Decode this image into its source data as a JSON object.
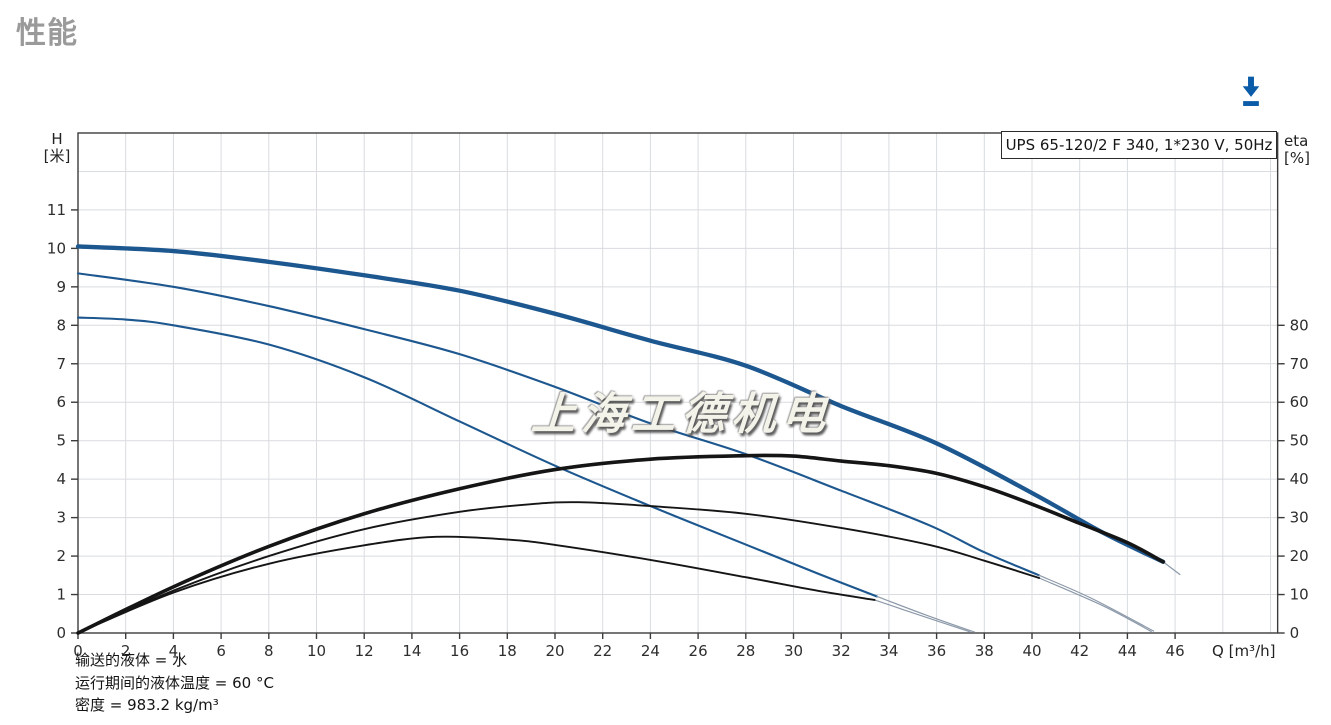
{
  "page": {
    "title": "性能"
  },
  "header": {
    "download": {
      "icon": "download-arrow",
      "color": "#0b5ca8"
    }
  },
  "chart_data": {
    "type": "line",
    "model_label": "UPS 65-120/2 F 340, 1*230 V, 50Hz",
    "watermark": "上海工德机电",
    "axes": {
      "left": {
        "name": "H",
        "unit": "[米]",
        "ticks": [
          0,
          1,
          2,
          3,
          4,
          5,
          6,
          7,
          8,
          9,
          10,
          11
        ],
        "range": [
          0,
          13
        ]
      },
      "right": {
        "name": "eta",
        "unit": "[%]",
        "ticks": [
          0,
          10,
          20,
          30,
          40,
          50,
          60,
          70,
          80
        ],
        "range": [
          0,
          130
        ]
      },
      "bottom": {
        "name": "Q",
        "unit": "[m³/h]",
        "ticks": [
          0,
          2,
          4,
          6,
          8,
          10,
          12,
          14,
          16,
          18,
          20,
          22,
          24,
          26,
          28,
          30,
          32,
          34,
          36,
          38,
          40,
          42,
          44,
          46
        ],
        "range": [
          0,
          50.3
        ]
      }
    },
    "grid": {
      "x_step": 2,
      "y_step": 1,
      "on": true
    },
    "colors": {
      "curve_blue": "#1d578f",
      "curve_black": "#151515",
      "tail_gray": "#8c99a9",
      "grid": "#d9dce0",
      "axis": "#3c3c3c",
      "text": "#2e2e2e"
    },
    "series": [
      {
        "name": "h-curve-speed-3",
        "axis": "H",
        "color": "blue",
        "weight": "thick",
        "points": [
          [
            0,
            10.05
          ],
          [
            4,
            9.93
          ],
          [
            8,
            9.65
          ],
          [
            12,
            9.3
          ],
          [
            16,
            8.9
          ],
          [
            20,
            8.3
          ],
          [
            24,
            7.6
          ],
          [
            28,
            6.95
          ],
          [
            32,
            5.9
          ],
          [
            36,
            4.93
          ],
          [
            40,
            3.64
          ],
          [
            43,
            2.6
          ],
          [
            45.5,
            1.85
          ]
        ]
      },
      {
        "name": "h-curve-speed-2",
        "axis": "H",
        "color": "blue",
        "weight": "thin",
        "points": [
          [
            0,
            9.35
          ],
          [
            4,
            9.0
          ],
          [
            8,
            8.5
          ],
          [
            12,
            7.9
          ],
          [
            16,
            7.25
          ],
          [
            20,
            6.4
          ],
          [
            24,
            5.45
          ],
          [
            28,
            4.65
          ],
          [
            32,
            3.7
          ],
          [
            35.7,
            2.8
          ],
          [
            38,
            2.1
          ],
          [
            40.3,
            1.5
          ]
        ]
      },
      {
        "name": "h-curve-speed-1",
        "axis": "H",
        "color": "blue",
        "weight": "thin",
        "points": [
          [
            0,
            8.2
          ],
          [
            2,
            8.15
          ],
          [
            4,
            8.0
          ],
          [
            8,
            7.5
          ],
          [
            12,
            6.65
          ],
          [
            16,
            5.5
          ],
          [
            20,
            4.35
          ],
          [
            24,
            3.3
          ],
          [
            28,
            2.3
          ],
          [
            31,
            1.55
          ],
          [
            33.5,
            0.95
          ]
        ]
      },
      {
        "name": "h-curve-speed-3-extension",
        "axis": "H",
        "color": "tail",
        "weight": "tail",
        "points": [
          [
            45.5,
            1.85
          ],
          [
            46.2,
            1.52
          ]
        ]
      },
      {
        "name": "h-curve-speed-2-extension",
        "axis": "H",
        "color": "tail",
        "weight": "tail",
        "points": [
          [
            40.3,
            1.5
          ],
          [
            42.5,
            0.9
          ],
          [
            45.1,
            0.05
          ]
        ]
      },
      {
        "name": "h-curve-speed-1-extension",
        "axis": "H",
        "color": "tail",
        "weight": "tail",
        "points": [
          [
            33.5,
            0.95
          ],
          [
            35.5,
            0.48
          ],
          [
            37.6,
            0.02
          ]
        ]
      },
      {
        "name": "eta-curve-speed-2-extension",
        "axis": "eta",
        "color": "tail",
        "weight": "tail",
        "points": [
          [
            40.3,
            14.3
          ],
          [
            43,
            7
          ],
          [
            45.0,
            0.4
          ]
        ]
      },
      {
        "name": "eta-curve-speed-1-extension",
        "axis": "eta",
        "color": "tail",
        "weight": "tail",
        "points": [
          [
            33.4,
            8.6
          ],
          [
            35.5,
            4.2
          ],
          [
            37.4,
            0.3
          ]
        ]
      },
      {
        "name": "eta-curve-speed-3",
        "axis": "eta",
        "color": "black",
        "weight": "thick",
        "points": [
          [
            0,
            0
          ],
          [
            4,
            12
          ],
          [
            8,
            22.5
          ],
          [
            12,
            31
          ],
          [
            16,
            37.5
          ],
          [
            20,
            42.5
          ],
          [
            24,
            45.2
          ],
          [
            28,
            46.1
          ],
          [
            30,
            46
          ],
          [
            32,
            44.7
          ],
          [
            34,
            43.5
          ],
          [
            36,
            41.5
          ],
          [
            38,
            38
          ],
          [
            40,
            33.5
          ],
          [
            42,
            28.5
          ],
          [
            44,
            23.5
          ],
          [
            45.5,
            18.5
          ]
        ]
      },
      {
        "name": "eta-curve-speed-2",
        "axis": "eta",
        "color": "black",
        "weight": "thin",
        "points": [
          [
            0,
            0
          ],
          [
            4,
            11
          ],
          [
            8,
            20
          ],
          [
            12,
            27
          ],
          [
            16,
            31.5
          ],
          [
            19,
            33.5
          ],
          [
            21,
            34
          ],
          [
            24,
            33
          ],
          [
            28,
            31
          ],
          [
            32,
            27.3
          ],
          [
            35.7,
            22.9
          ],
          [
            38,
            18.8
          ],
          [
            40.3,
            14.3
          ]
        ]
      },
      {
        "name": "eta-curve-speed-1",
        "axis": "eta",
        "color": "black",
        "weight": "thin",
        "points": [
          [
            0,
            0
          ],
          [
            4,
            10.5
          ],
          [
            8,
            18
          ],
          [
            12,
            22.8
          ],
          [
            15,
            25
          ],
          [
            18,
            24.3
          ],
          [
            20,
            22.9
          ],
          [
            24,
            19
          ],
          [
            28,
            14.5
          ],
          [
            31,
            11
          ],
          [
            33.4,
            8.6
          ]
        ]
      }
    ]
  },
  "footer": {
    "lines": [
      "输送的液体 = 水",
      "运行期间的液体温度 = 60 °C",
      "密度 = 983.2 kg/m³"
    ]
  }
}
